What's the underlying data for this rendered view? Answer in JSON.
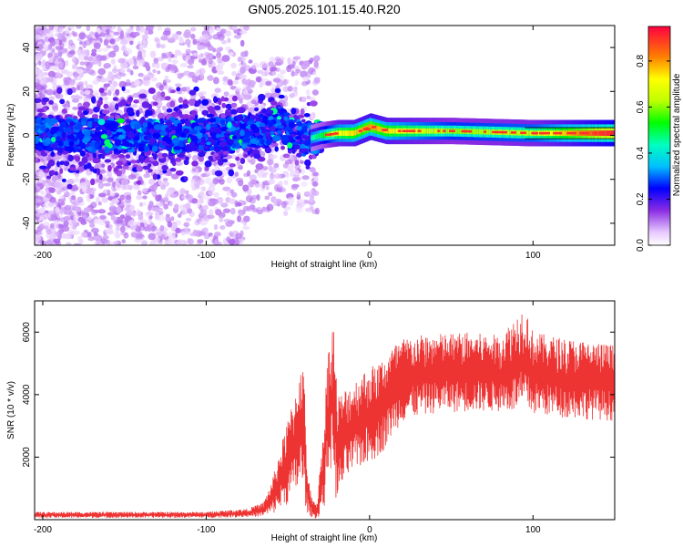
{
  "figure": {
    "title": "GN05.2025.101.15.40.R20"
  },
  "chart_data": [
    {
      "type": "heatmap",
      "xlabel": "Height of straight line (km)",
      "ylabel": "Frequency (Hz)",
      "xlim": [
        -205,
        150
      ],
      "ylim": [
        -50,
        50
      ],
      "xticks": [
        "-200",
        "-100",
        "0",
        "100"
      ],
      "xtick_values": [
        -200,
        -100,
        0,
        100
      ],
      "yticks": [
        "-40",
        "-20",
        "0",
        "20",
        "40"
      ],
      "ytick_values": [
        -40,
        -20,
        0,
        20,
        40
      ],
      "colorbar": {
        "label": "Normalized spectral amplitude",
        "range": [
          0,
          0.95
        ],
        "ticks": [
          "0.0",
          "0.2",
          "0.4",
          "0.6",
          "0.8"
        ],
        "tick_values": [
          0.0,
          0.2,
          0.4,
          0.6,
          0.8
        ],
        "colormap": "rainbow"
      },
      "ridge": {
        "x": [
          -205,
          -150,
          -100,
          -70,
          -55,
          -40,
          -30,
          -20,
          -10,
          0,
          10,
          50,
          100,
          150
        ],
        "frequency": [
          0,
          0,
          0,
          2,
          5,
          -2,
          0,
          1,
          1,
          4,
          2,
          2,
          1,
          1
        ],
        "amplitude": [
          0.22,
          0.22,
          0.25,
          0.35,
          0.4,
          0.4,
          0.5,
          0.7,
          0.75,
          0.8,
          0.75,
          0.6,
          0.65,
          0.95
        ]
      }
    },
    {
      "type": "line",
      "xlabel": "Height of straight line (km)",
      "ylabel": "SNR (10 * v/v)",
      "xlim": [
        -205,
        150
      ],
      "ylim": [
        0,
        7000
      ],
      "xticks": [
        "-200",
        "-100",
        "0",
        "100"
      ],
      "xtick_values": [
        -200,
        -100,
        0,
        100
      ],
      "yticks": [
        "2000",
        "4000",
        "6000"
      ],
      "ytick_values": [
        2000,
        4000,
        6000
      ],
      "color": "#ee3333",
      "envelope": {
        "x": [
          -205,
          -100,
          -75,
          -65,
          -60,
          -55,
          -50,
          -45,
          -42,
          -40,
          -38,
          -35,
          -32,
          -28,
          -25,
          -22,
          -20,
          -18,
          -15,
          -10,
          -5,
          0,
          5,
          10,
          15,
          20,
          30,
          40,
          60,
          80,
          95,
          100,
          120,
          150
        ],
        "lower": [
          50,
          60,
          80,
          100,
          150,
          300,
          500,
          800,
          1000,
          600,
          200,
          50,
          30,
          300,
          1500,
          1700,
          200,
          800,
          1200,
          1500,
          1700,
          1800,
          2000,
          2300,
          2800,
          3100,
          3300,
          3400,
          3450,
          3450,
          3400,
          3350,
          3250,
          3150
        ],
        "upper": [
          250,
          250,
          350,
          550,
          1200,
          2200,
          3200,
          4200,
          5200,
          4600,
          1500,
          600,
          600,
          3200,
          5800,
          6400,
          4200,
          4000,
          4200,
          4400,
          4700,
          4900,
          5000,
          5300,
          5600,
          5800,
          5900,
          5950,
          6000,
          5900,
          6900,
          6000,
          5800,
          5600
        ]
      }
    }
  ]
}
